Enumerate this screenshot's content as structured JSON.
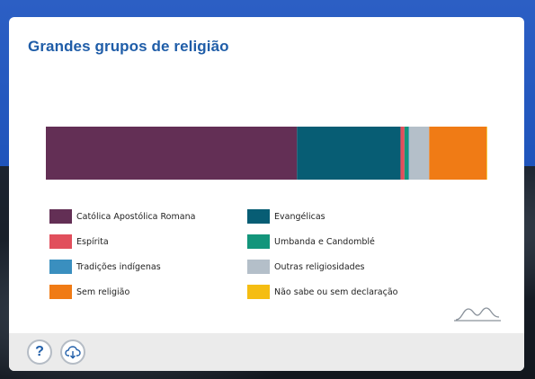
{
  "card": {
    "title": "Grandes grupos de religião"
  },
  "chart_data": {
    "type": "bar",
    "orientation": "horizontal-stacked-100",
    "categories": [
      "Grandes grupos de religião"
    ],
    "xlim": [
      0,
      100
    ],
    "grid": false,
    "legend_position": "bottom",
    "series": [
      {
        "name": "Católica Apostólica Romana",
        "values": [
          57.0
        ],
        "color": "#632f55"
      },
      {
        "name": "Evangélicas",
        "values": [
          23.5
        ],
        "color": "#075d74"
      },
      {
        "name": "Espírita",
        "values": [
          0.9
        ],
        "color": "#e14f5c"
      },
      {
        "name": "Umbanda e Candomblé",
        "values": [
          0.9
        ],
        "color": "#13957b"
      },
      {
        "name": "Tradições indígenas",
        "values": [
          0.2
        ],
        "color": "#3a8fbf"
      },
      {
        "name": "Outras religiosidades",
        "values": [
          4.5
        ],
        "color": "#b4bfc9"
      },
      {
        "name": "Sem religião",
        "values": [
          13.0
        ],
        "color": "#f07b15"
      },
      {
        "name": "Não sabe ou sem declaração",
        "values": [
          0.1
        ],
        "color": "#f5bd12"
      }
    ]
  },
  "legend": {
    "items": [
      {
        "label": "Católica Apostólica Romana",
        "color": "#632f55"
      },
      {
        "label": "Evangélicas",
        "color": "#075d74"
      },
      {
        "label": "Espírita",
        "color": "#e14f5c"
      },
      {
        "label": "Umbanda e Candomblé",
        "color": "#13957b"
      },
      {
        "label": "Tradições indígenas",
        "color": "#3a8fbf"
      },
      {
        "label": "Outras religiosidades",
        "color": "#b4bfc9"
      },
      {
        "label": "Sem religião",
        "color": "#f07b15"
      },
      {
        "label": "Não sabe ou sem declaração",
        "color": "#f5bd12"
      }
    ]
  },
  "footer": {
    "help_icon": "question-mark-icon",
    "download_icon": "cloud-download-icon"
  }
}
